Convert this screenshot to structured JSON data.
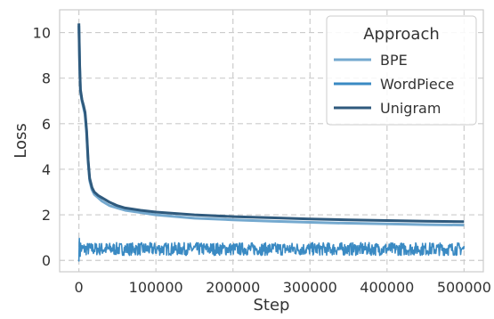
{
  "chart_data": {
    "type": "line",
    "title": "",
    "xlabel": "Step",
    "ylabel": "Loss",
    "xlim": [
      -25000,
      525000
    ],
    "ylim": [
      -0.5,
      11.0
    ],
    "x_ticks": [
      0,
      100000,
      200000,
      300000,
      400000,
      500000
    ],
    "x_tick_labels": [
      "0",
      "100000",
      "200000",
      "300000",
      "400000",
      "500000"
    ],
    "y_ticks": [
      0,
      2,
      4,
      6,
      8,
      10
    ],
    "y_tick_labels": [
      "0",
      "2",
      "4",
      "6",
      "8",
      "10"
    ],
    "grid": true,
    "legend": {
      "title": "Approach",
      "placement": "top-right"
    },
    "series": [
      {
        "name": "BPE",
        "color": "#74a9cf",
        "x": [
          0,
          1000,
          2000,
          4000,
          6000,
          8000,
          10000,
          12000,
          14000,
          17000,
          20000,
          25000,
          30000,
          40000,
          50000,
          60000,
          80000,
          100000,
          150000,
          200000,
          250000,
          300000,
          350000,
          400000,
          450000,
          500000
        ],
        "y": [
          10.3,
          8.5,
          7.4,
          7.0,
          6.7,
          6.4,
          5.6,
          4.3,
          3.5,
          3.1,
          2.9,
          2.75,
          2.6,
          2.4,
          2.3,
          2.2,
          2.1,
          2.0,
          1.85,
          1.78,
          1.72,
          1.67,
          1.63,
          1.6,
          1.57,
          1.55
        ]
      },
      {
        "name": "WordPiece",
        "color": "#3a8ac3",
        "x": [
          0,
          500000
        ],
        "y": [
          0.5,
          0.5
        ]
      },
      {
        "name": "Unigram",
        "color": "#2f5a7d",
        "x": [
          0,
          1000,
          2000,
          4000,
          6000,
          8000,
          10000,
          12000,
          14000,
          17000,
          20000,
          25000,
          30000,
          40000,
          50000,
          60000,
          80000,
          100000,
          150000,
          200000,
          250000,
          300000,
          350000,
          400000,
          450000,
          500000
        ],
        "y": [
          10.4,
          8.6,
          7.5,
          7.05,
          6.8,
          6.5,
          5.7,
          4.4,
          3.6,
          3.2,
          3.0,
          2.85,
          2.75,
          2.55,
          2.4,
          2.3,
          2.2,
          2.12,
          2.0,
          1.92,
          1.87,
          1.82,
          1.78,
          1.75,
          1.72,
          1.7
        ]
      }
    ]
  }
}
